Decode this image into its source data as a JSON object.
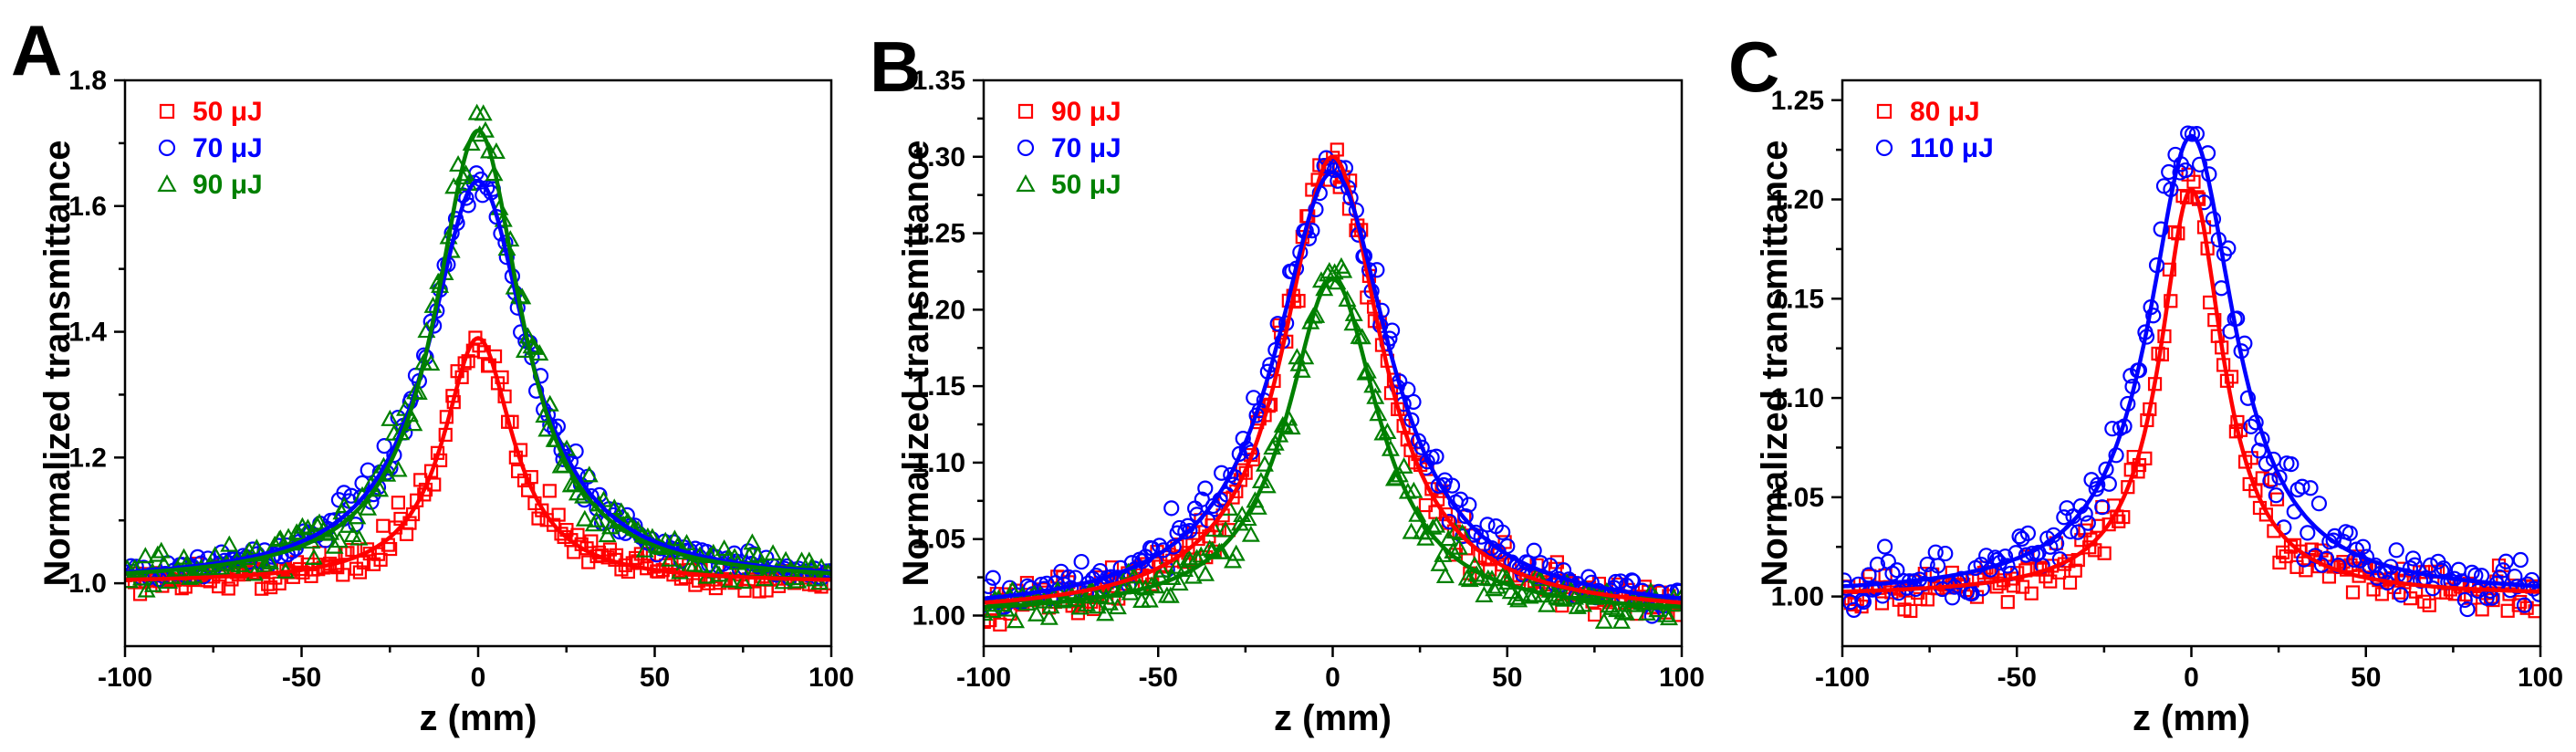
{
  "figure": {
    "colors": {
      "red": "#ff0000",
      "blue": "#0000ff",
      "green": "#008000",
      "axis": "#000000"
    }
  },
  "chart_data": [
    {
      "panel_label": "A",
      "type": "scatter",
      "xlabel": "z (mm)",
      "ylabel": "Normalized transmittance",
      "xlim": [
        -100,
        100
      ],
      "ylim": [
        0.9,
        1.8
      ],
      "xticks": [
        -100,
        -50,
        0,
        50,
        100
      ],
      "xtick_labels": [
        "-100",
        "-50",
        "0",
        "50",
        "100"
      ],
      "yticks": [
        1.0,
        1.2,
        1.4,
        1.6,
        1.8
      ],
      "ytick_labels": [
        "1.0",
        "1.2",
        "1.4",
        "1.6",
        "1.8"
      ],
      "legend_position": "top-left",
      "series": [
        {
          "name": "50 μJ",
          "marker": "square",
          "color": "#ff0000",
          "fit_peak": 1.39,
          "fit_width": 12,
          "noise": 0.025
        },
        {
          "name": "70 μJ",
          "marker": "circle",
          "color": "#0000ff",
          "fit_peak": 1.64,
          "fit_width": 17,
          "noise": 0.02
        },
        {
          "name": "90 μJ",
          "marker": "triangle",
          "color": "#008000",
          "fit_peak": 1.72,
          "fit_width": 15,
          "noise": 0.035
        }
      ]
    },
    {
      "panel_label": "B",
      "type": "scatter",
      "xlabel": "z (mm)",
      "ylabel": "Normalized transmittance",
      "xlim": [
        -100,
        100
      ],
      "ylim": [
        0.98,
        1.35
      ],
      "xticks": [
        -100,
        -50,
        0,
        50,
        100
      ],
      "xtick_labels": [
        "-100",
        "-50",
        "0",
        "50",
        "100"
      ],
      "yticks": [
        1.0,
        1.05,
        1.1,
        1.15,
        1.2,
        1.25,
        1.3,
        1.35
      ],
      "ytick_labels": [
        "1.00",
        "1.05",
        "1.10",
        "1.15",
        "1.20",
        "1.25",
        "1.30",
        "1.35"
      ],
      "legend_position": "top-left",
      "series": [
        {
          "name": "90 μJ",
          "marker": "square",
          "color": "#ff0000",
          "fit_peak": 1.3,
          "fit_width": 17,
          "noise": 0.014
        },
        {
          "name": "70 μJ",
          "marker": "circle",
          "color": "#0000ff",
          "fit_peak": 1.29,
          "fit_width": 20,
          "noise": 0.012
        },
        {
          "name": "50 μJ",
          "marker": "triangle",
          "color": "#008000",
          "fit_peak": 1.22,
          "fit_width": 16,
          "noise": 0.012
        }
      ]
    },
    {
      "panel_label": "C",
      "type": "scatter",
      "xlabel": "z (mm)",
      "ylabel": "Normalized transmittance",
      "xlim": [
        -100,
        100
      ],
      "ylim": [
        0.975,
        1.26
      ],
      "xticks": [
        -100,
        -50,
        0,
        50,
        100
      ],
      "xtick_labels": [
        "-100",
        "-50",
        "0",
        "50",
        "100"
      ],
      "yticks": [
        1.0,
        1.05,
        1.1,
        1.15,
        1.2,
        1.25
      ],
      "ytick_labels": [
        "1.00",
        "1.05",
        "1.10",
        "1.15",
        "1.20",
        "1.25"
      ],
      "legend_position": "top-left",
      "series": [
        {
          "name": "80 μJ",
          "marker": "square",
          "color": "#ff0000",
          "fit_peak": 1.205,
          "fit_width": 11,
          "noise": 0.012
        },
        {
          "name": "110 μJ",
          "marker": "circle",
          "color": "#0000ff",
          "fit_peak": 1.232,
          "fit_width": 15,
          "noise": 0.015
        }
      ]
    }
  ]
}
